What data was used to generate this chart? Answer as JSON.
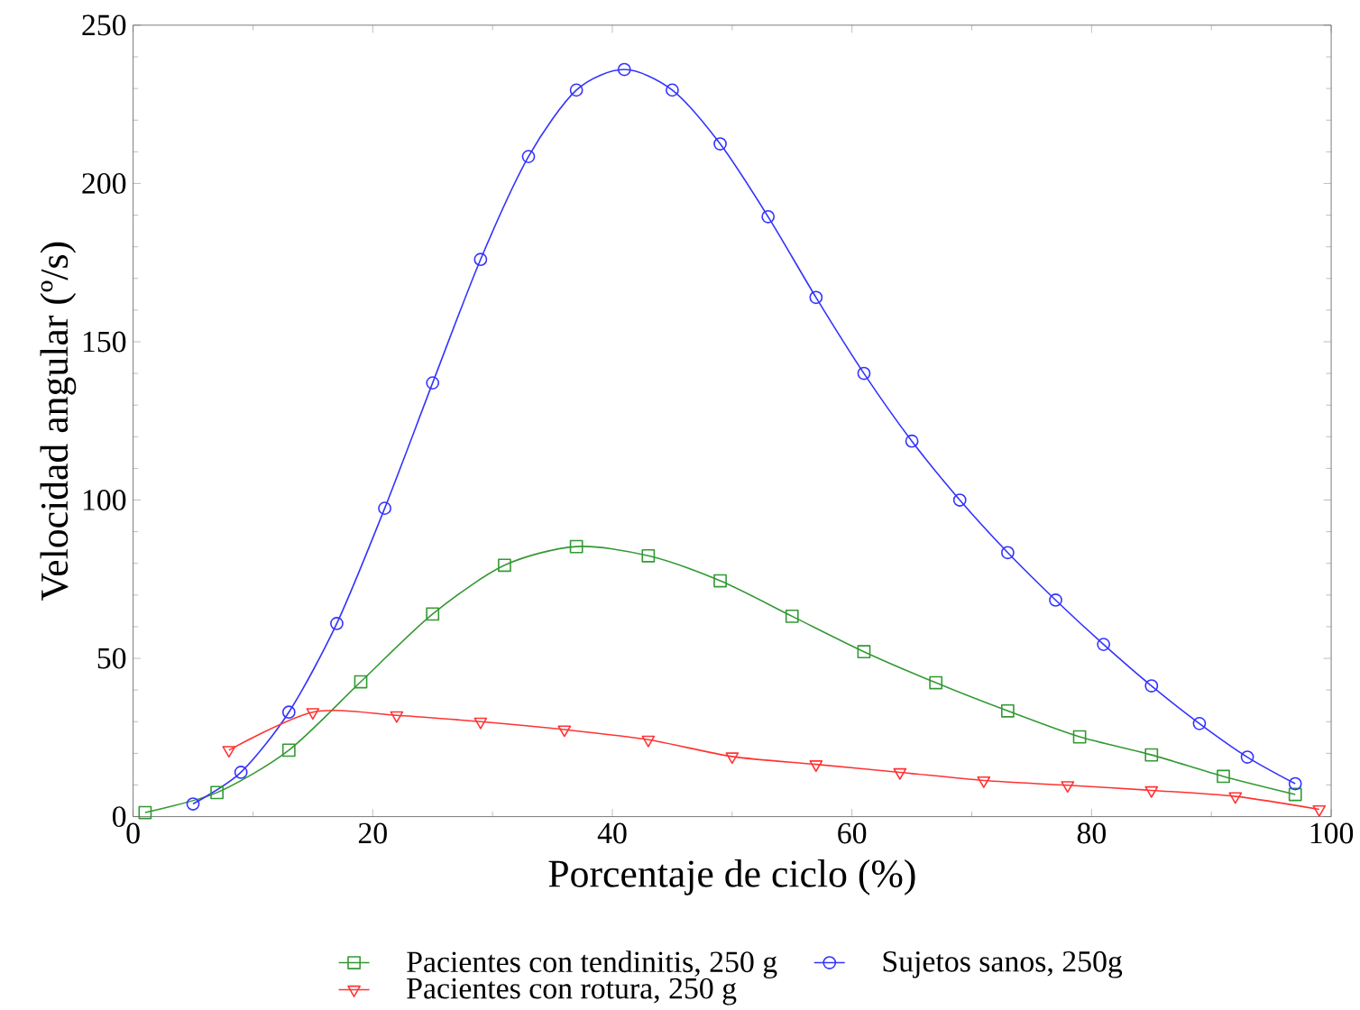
{
  "chart_data": {
    "type": "line",
    "xlabel": "Porcentaje de ciclo (%)",
    "ylabel": "Velocidad angular (º/s)",
    "xlim": [
      0,
      100
    ],
    "ylim": [
      0,
      250
    ],
    "xticks": [
      0,
      20,
      40,
      60,
      80,
      100
    ],
    "yticks": [
      0,
      50,
      100,
      150,
      200,
      250
    ],
    "legend": "bottom",
    "line_style": "solid",
    "series": [
      {
        "name": "Pacientes con tendinitis, 250 g",
        "color": "#339933",
        "marker": "square",
        "x": [
          1,
          7,
          13,
          19,
          25,
          31,
          37,
          43,
          49,
          55,
          61,
          67,
          73,
          79,
          85,
          91,
          97
        ],
        "values": [
          1.3,
          7.6,
          21,
          42.6,
          64,
          79.4,
          85.3,
          82.4,
          74.5,
          63.3,
          52.1,
          42.3,
          33.4,
          25.2,
          19.5,
          12.7,
          7
        ]
      },
      {
        "name": "Sujetos sanos, 250g",
        "color": "#3333ff",
        "marker": "circle",
        "x": [
          5,
          9,
          13,
          17,
          21,
          25,
          29,
          33,
          37,
          41,
          45,
          49,
          53,
          57,
          61,
          65,
          69,
          73,
          77,
          81,
          85,
          89,
          93,
          97
        ],
        "values": [
          4,
          14,
          33,
          61,
          97.4,
          137,
          176,
          208.5,
          229.5,
          236,
          229.5,
          212.5,
          189.5,
          164,
          140,
          118.6,
          100,
          83.4,
          68.4,
          54.4,
          41.3,
          29.4,
          18.8,
          10.4
        ]
      },
      {
        "name": "Pacientes con rotura, 250 g",
        "color": "#ff3333",
        "marker": "triangle",
        "x": [
          8,
          15,
          22,
          29,
          36,
          43,
          50,
          57,
          64,
          71,
          78,
          85,
          92,
          99
        ],
        "values": [
          21,
          33,
          32,
          30,
          27.5,
          24.3,
          19,
          16.5,
          14,
          11.4,
          9.9,
          8.3,
          6.4,
          2.3
        ]
      }
    ]
  }
}
